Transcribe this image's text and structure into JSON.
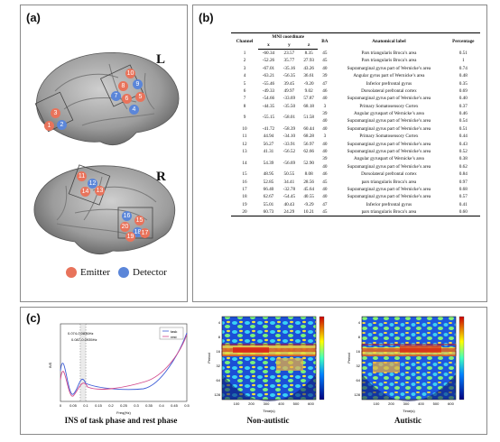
{
  "panels": {
    "a": {
      "label": "(a)"
    },
    "b": {
      "label": "(b)"
    },
    "c": {
      "label": "(c)"
    }
  },
  "brain": {
    "left_label": "L",
    "right_label": "R",
    "left_channels": [
      {
        "n": "10",
        "type": "emitter"
      },
      {
        "n": "9",
        "type": "emitter"
      },
      {
        "n": "8",
        "type": "emitter"
      },
      {
        "n": "7",
        "type": "detector"
      },
      {
        "n": "6",
        "type": "detector"
      },
      {
        "n": "5",
        "type": "emitter"
      },
      {
        "n": "4",
        "type": "detector"
      },
      {
        "n": "3",
        "type": "emitter"
      },
      {
        "n": "1",
        "type": "emitter"
      },
      {
        "n": "2",
        "type": "detector"
      }
    ],
    "right_channels": [
      {
        "n": "11",
        "type": "emitter"
      },
      {
        "n": "12",
        "type": "detector"
      },
      {
        "n": "13",
        "type": "emitter"
      },
      {
        "n": "14",
        "type": "emitter"
      },
      {
        "n": "15",
        "type": "detector"
      },
      {
        "n": "16",
        "type": "detector"
      },
      {
        "n": "17",
        "type": "emitter"
      },
      {
        "n": "18",
        "type": "detector"
      },
      {
        "n": "19",
        "type": "emitter"
      },
      {
        "n": "20",
        "type": "emitter"
      }
    ],
    "legend_emitter": "Emitter",
    "legend_detector": "Detector",
    "emitter_color": "#e8735b",
    "detector_color": "#5b86d9"
  },
  "table": {
    "headers": {
      "channel": "Channel",
      "mni": "MNI coordinate",
      "x": "x",
      "y": "y",
      "z": "z",
      "ba": "BA",
      "label": "Anatomical label",
      "pct": "Percentage"
    },
    "rows": [
      {
        "ch": "1",
        "x": "-60.34",
        "y": "23.57",
        "z": "8.35",
        "ba": "45",
        "label": "Pars triangularis Broca’s area",
        "pct": "0.51"
      },
      {
        "ch": "2",
        "x": "-52.26",
        "y": "35.77",
        "z": "27.93",
        "ba": "45",
        "label": "Pars triangularis Broca’s area",
        "pct": "1"
      },
      {
        "ch": "3",
        "x": "-67.01",
        "y": "-35.16",
        "z": "43.26",
        "ba": "40",
        "label": "Supramarginal gyrus part of Wernicke’s area",
        "pct": "0.74"
      },
      {
        "ch": "4",
        "x": "-63.21",
        "y": "-56.35",
        "z": "36.61",
        "ba": "39",
        "label": "Angular gyrus part of Wernicke’s area",
        "pct": "0.48"
      },
      {
        "ch": "5",
        "x": "-55.46",
        "y": "39.45",
        "z": "-9.20",
        "ba": "47",
        "label": "Inferior prefrontal gyrus",
        "pct": "0.35"
      },
      {
        "ch": "6",
        "x": "-49.33",
        "y": "49.97",
        "z": "9.02",
        "ba": "46",
        "label": "Dorsolateral prefrontal cortex",
        "pct": "0.69"
      },
      {
        "ch": "7",
        "x": "-54.66",
        "y": "-33.69",
        "z": "57.87",
        "ba": "40",
        "label": "Supramarginal gyrus part of Wernicke’s area",
        "pct": "0.40"
      },
      {
        "ch": "8",
        "x": "-44.35",
        "y": "-35.50",
        "z": "68.18",
        "ba": "3",
        "label": "Primary Somatosensory Cortex",
        "pct": "0.37"
      },
      {
        "ch": "9",
        "x": "-55.15",
        "y": "-58.01",
        "z": "51.58",
        "ba": "39",
        "label": "Angular gyruspart of Wernicke’s area",
        "pct": "0.46",
        "ba2": "40",
        "label2": "Supramarginal gyrus part of Wernicke’s area",
        "pct2": "0.54"
      },
      {
        "ch": "10",
        "x": "-41.72",
        "y": "-58.39",
        "z": "60.44",
        "ba": "40",
        "label": "Supramarginal gyrus part of Wernicke’s area",
        "pct": "0.51"
      },
      {
        "ch": "11",
        "x": "44.94",
        "y": "-34.10",
        "z": "68.28",
        "ba": "3",
        "label": "Primary Somatosensory Cortex",
        "pct": "0.44"
      },
      {
        "ch": "12",
        "x": "56.27",
        "y": "-33.91",
        "z": "56.97",
        "ba": "40",
        "label": "Supramarginal gyrus part of Wernicke’s area",
        "pct": "0.43"
      },
      {
        "ch": "13",
        "x": "41.31",
        "y": "-56.52",
        "z": "62.66",
        "ba": "40",
        "label": "Supramarginal gyrus part of Wernicke’s area",
        "pct": "0.52"
      },
      {
        "ch": "14",
        "x": "54.39",
        "y": "-56.69",
        "z": "52.90",
        "ba": "39",
        "label": "Angular gyruspart of Wernicke’s area",
        "pct": "0.38",
        "ba2": "40",
        "label2": "Supramarginal gyrus part of Wernicke’s area",
        "pct2": "0.62"
      },
      {
        "ch": "15",
        "x": "48.95",
        "y": "50.55",
        "z": "8.08",
        "ba": "46",
        "label": "Dorsolateral prefrontal cortex",
        "pct": "0.84"
      },
      {
        "ch": "16",
        "x": "52.85",
        "y": "34.41",
        "z": "28.56",
        "ba": "45",
        "label": "pars triangularis Broca’s area",
        "pct": "0.97"
      },
      {
        "ch": "17",
        "x": "66.40",
        "y": "-32.78",
        "z": "45.64",
        "ba": "40",
        "label": "Supramarginal gyrus part of Wernicke’s area",
        "pct": "0.68"
      },
      {
        "ch": "18",
        "x": "62.67",
        "y": "-54.45",
        "z": "40.55",
        "ba": "40",
        "label": "Supramarginal gyrus part of Wernicke’s area",
        "pct": "0.57"
      },
      {
        "ch": "19",
        "x": "55.01",
        "y": "40.43",
        "z": "-9.29",
        "ba": "47",
        "label": "Inferior prefrontal gyrus",
        "pct": "0.41"
      },
      {
        "ch": "20",
        "x": "60.73",
        "y": "24.29",
        "z": "10.21",
        "ba": "45",
        "label": "pars triangularis Broca’s area",
        "pct": "0.60"
      }
    ]
  },
  "panel_c": {
    "line_caption": "INS of task phase and rest phase",
    "wtc1_caption": "Non-autistic",
    "wtc2_caption": "Autistic",
    "line_legend": [
      "task",
      "rest"
    ],
    "task_color": "#3b5bd6",
    "rest_color": "#d24a8c",
    "annotations": [
      "0.074-0.0836Hz",
      "0.087-0.0935Hz"
    ],
    "line_xticks": [
      "0",
      "0.05",
      "0.1",
      "0.15",
      "0.2",
      "0.25",
      "0.3",
      "0.35",
      "0.4",
      "0.45",
      "0.5"
    ],
    "line_xlabel": "Freq(Hz)",
    "line_ylabel": "INS",
    "wtc_xticks": [
      "100",
      "200",
      "300",
      "400",
      "500",
      "600"
    ],
    "wtc_xlabel": "Time(s)",
    "wtc_ylabel": "Period",
    "wtc_yticks": [
      "4",
      "8",
      "16",
      "32",
      "64",
      "128"
    ]
  }
}
